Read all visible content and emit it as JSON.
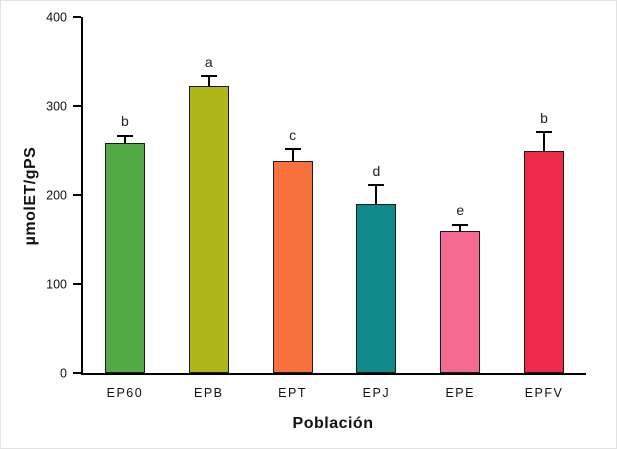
{
  "chart_data": {
    "type": "bar",
    "title": "",
    "xlabel": "Población",
    "ylabel": "µmolET/gPS",
    "categories": [
      "EP60",
      "EPB",
      "EPT",
      "EPJ",
      "EPE",
      "EPFV"
    ],
    "values": [
      258,
      322,
      238,
      190,
      160,
      250
    ],
    "errors_upper": [
      10,
      13,
      15,
      22,
      8,
      22
    ],
    "significance_letters": [
      "b",
      "a",
      "c",
      "d",
      "e",
      "b"
    ],
    "bar_colors": [
      "#53a943",
      "#aeb61c",
      "#f9713c",
      "#0e8b8a",
      "#f46a90",
      "#ee2b4a"
    ],
    "bar_outline_color": "#1a1a1a",
    "error_bar_color": "#000000",
    "ylim": [
      0,
      400
    ],
    "yticks": [
      0,
      100,
      200,
      300,
      400
    ],
    "grid": false,
    "legend": false
  }
}
